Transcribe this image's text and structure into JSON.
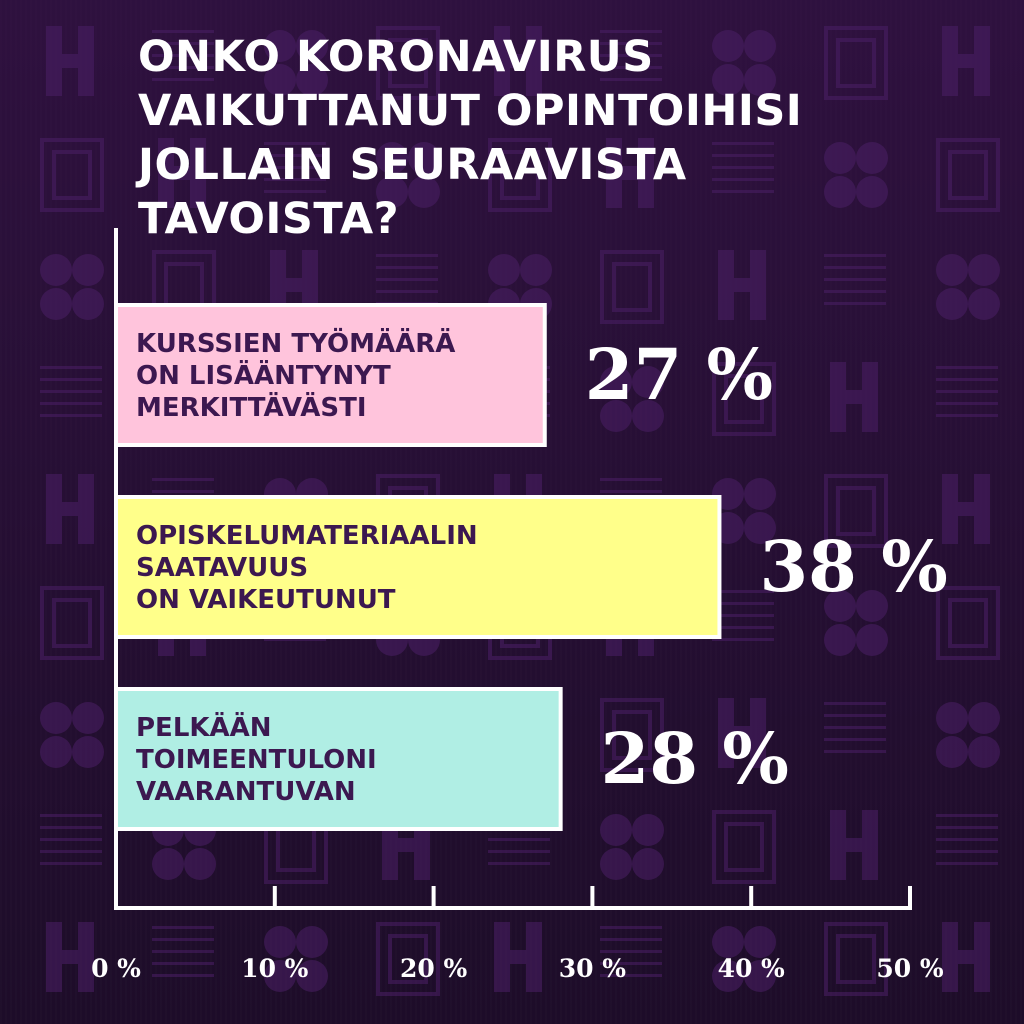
{
  "title": "ONKO KORONAVIRUS VAIKUTTANUT OPINTOIHISI JOLLAIN SEURAAVISTA TAVOISTA?",
  "background": {
    "tile_color": "#4b1f66",
    "base_color": "#1e0d2a"
  },
  "chart_data": {
    "type": "bar",
    "orientation": "horizontal",
    "categories": [
      [
        "KURSSIEN TYÖMÄÄRÄ",
        "ON LISÄÄNTYNYT",
        "MERKITTÄVÄSTI"
      ],
      [
        "OPISKELUMATERIAALIN",
        "SAATAVUUS",
        "ON VAIKEUTUNUT"
      ],
      [
        "PELKÄÄN",
        "TOIMEENTULONI",
        "VAARANTUVAN"
      ]
    ],
    "values": [
      27,
      38,
      28
    ],
    "value_labels": [
      "27 %",
      "38 %",
      "28 %"
    ],
    "bar_colors": [
      "#ffc4dc",
      "#ffff8a",
      "#b0eee4"
    ],
    "xlim": [
      0,
      50
    ],
    "xticks": [
      0,
      10,
      20,
      30,
      40,
      50
    ],
    "xtick_labels": [
      "0 %",
      "10 %",
      "20 %",
      "30 %",
      "40 %",
      "50 %"
    ],
    "grid": false,
    "legend": "none"
  }
}
